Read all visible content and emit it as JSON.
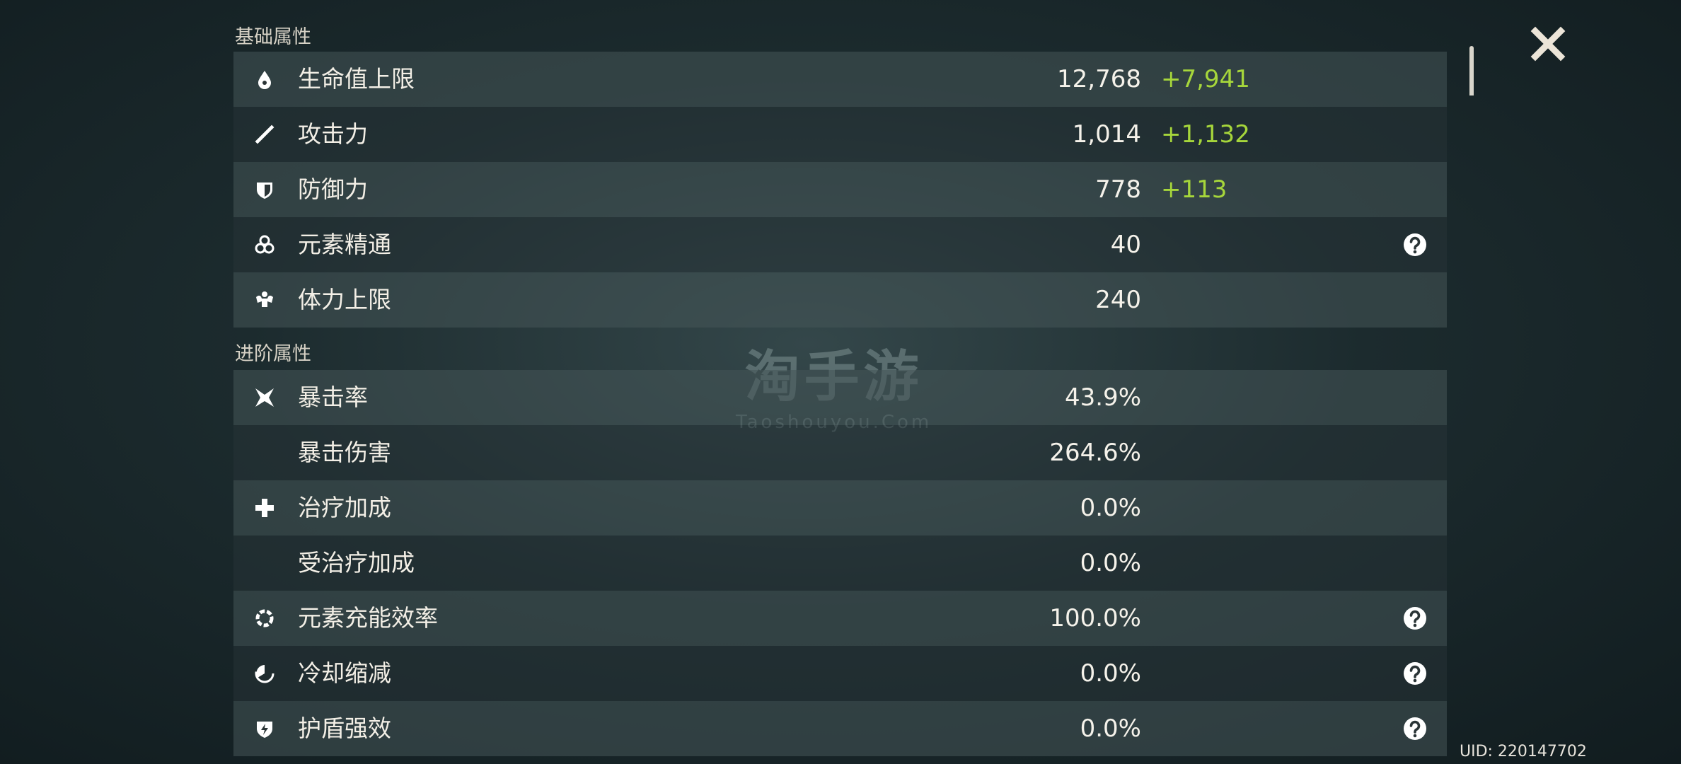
{
  "sections": [
    {
      "title": "基础属性",
      "rows": [
        {
          "icon": "hp",
          "label": "生命值上限",
          "value": "12,768",
          "bonus": "+7,941"
        },
        {
          "icon": "atk",
          "label": "攻击力",
          "value": "1,014",
          "bonus": "+1,132"
        },
        {
          "icon": "def",
          "label": "防御力",
          "value": "778",
          "bonus": "+113"
        },
        {
          "icon": "em",
          "label": "元素精通",
          "value": "40",
          "help": true
        },
        {
          "icon": "stamina",
          "label": "体力上限",
          "value": "240"
        }
      ]
    },
    {
      "title": "进阶属性",
      "rows": [
        {
          "icon": "crit",
          "label": "暴击率",
          "value": "43.9%"
        },
        {
          "icon": "none",
          "label": "暴击伤害",
          "value": "264.6%"
        },
        {
          "icon": "heal",
          "label": "治疗加成",
          "value": "0.0%"
        },
        {
          "icon": "none",
          "label": "受治疗加成",
          "value": "0.0%"
        },
        {
          "icon": "er",
          "label": "元素充能效率",
          "value": "100.0%",
          "help": true
        },
        {
          "icon": "cd",
          "label": "冷却缩减",
          "value": "0.0%",
          "help": true
        },
        {
          "icon": "shield",
          "label": "护盾强效",
          "value": "0.0%",
          "help": true
        }
      ]
    }
  ],
  "watermark": {
    "title": "淘手游",
    "site": "Taoshouyou.Com"
  },
  "uid": "UID: 220147702"
}
